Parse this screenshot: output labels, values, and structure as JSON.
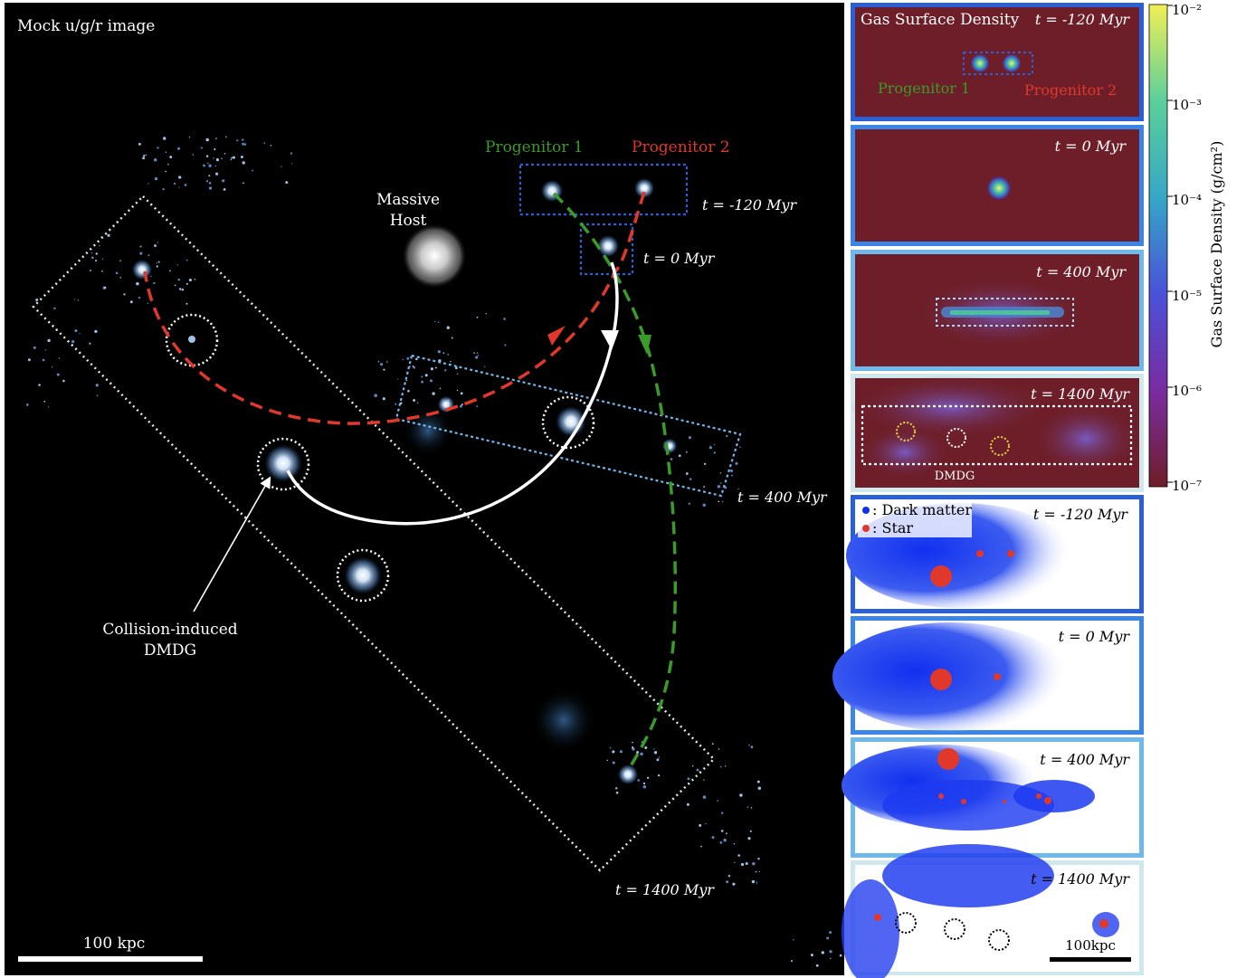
{
  "main": {
    "title": "Mock u/g/r image",
    "progenitor1": "Progenitor 1",
    "progenitor2": "Progenitor 2",
    "host_line1": "Massive",
    "host_line2": "Host",
    "time_m120": "t = -120 Myr",
    "time_0": "t = 0 Myr",
    "time_400": "t = 400 Myr",
    "time_1400": "t = 1400 Myr",
    "dmdg_line1": "Collision-induced",
    "dmdg_line2": "DMDG",
    "scalebar": "100 kpc"
  },
  "gas_panels": {
    "header": "Gas Surface Density",
    "p1_time": "t = -120 Myr",
    "p1_prog1": "Progenitor 1",
    "p1_prog2": "Progenitor 2",
    "p2_time": "t = 0 Myr",
    "p3_time": "t = 400 Myr",
    "p4_time": "t = 1400 Myr",
    "p4_label": "DMDG"
  },
  "dm_panels": {
    "legend_dm": ": Dark matter",
    "legend_star": ": Star",
    "p1_time": "t = -120 Myr",
    "p2_time": "t = 0 Myr",
    "p3_time": "t = 400 Myr",
    "p4_time": "t = 1400 Myr",
    "scalebar": "100kpc"
  },
  "colorbar": {
    "label": "Gas Surface Density (g/cm²)",
    "ticks": [
      "10⁻²",
      "10⁻³",
      "10⁻⁴",
      "10⁻⁵",
      "10⁻⁶",
      "10⁻⁷"
    ]
  },
  "colors": {
    "progenitor1": "#3a9a2a",
    "progenitor2": "#e0382a",
    "frame_dark": "#2a5fd8",
    "frame_light": "#6fb8ea",
    "gas_bg": "#6e1e28"
  }
}
